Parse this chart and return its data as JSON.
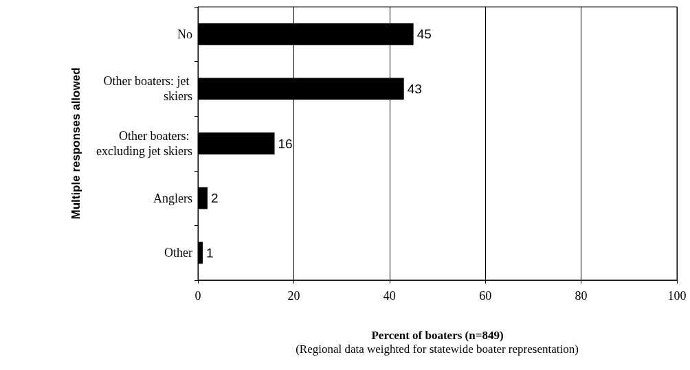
{
  "chart_data": {
    "type": "bar",
    "orientation": "horizontal",
    "xlabel": "Percent of boaters (n=849)",
    "ylabel": "Multiple responses allowed",
    "annotations": [
      "(Regional data weighted for statewide boater representation)"
    ],
    "categories": [
      "No",
      "Other boaters: jet skiers",
      "Other boaters: excluding jet skiers",
      "Anglers",
      "Other"
    ],
    "values": [
      45,
      43,
      16,
      2,
      1
    ],
    "color": "#000000",
    "xlim": [
      0,
      100
    ],
    "xticks": [
      0,
      20,
      40,
      60,
      80,
      100
    ],
    "grid": "x",
    "data_labels": true
  }
}
